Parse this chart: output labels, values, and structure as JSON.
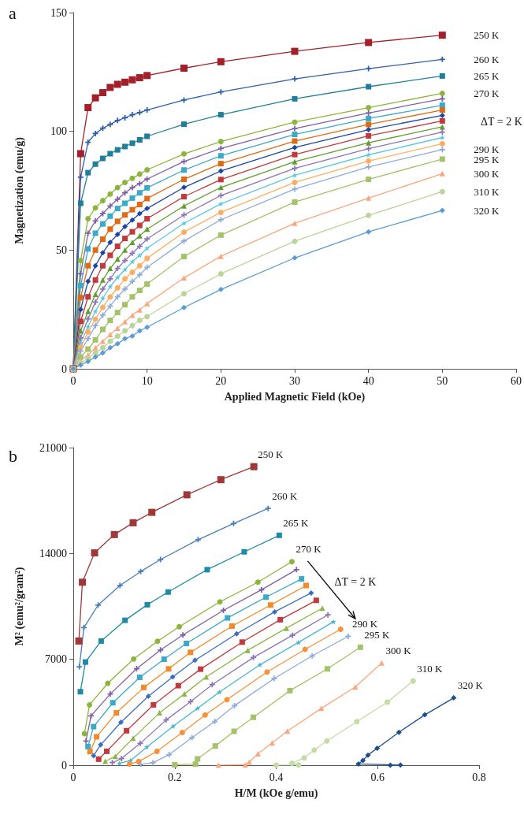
{
  "chart_data": [
    {
      "type": "line",
      "title": "a",
      "xlabel": "Applied Magnetic Field (kOe)",
      "ylabel": "Magnetization (emu/g)",
      "xlim": [
        0,
        60
      ],
      "xticks": [
        0,
        10,
        20,
        30,
        40,
        50,
        60
      ],
      "ylim": [
        0,
        150
      ],
      "yticks": [
        0,
        50,
        100,
        150
      ],
      "grid": false,
      "legend": false,
      "annotations": [
        "ΔT = 2 K"
      ],
      "x": [
        0,
        1,
        2,
        3,
        4,
        5,
        6,
        7,
        8,
        9,
        10,
        15,
        20,
        30,
        40,
        50
      ],
      "series": [
        {
          "name": "250 K",
          "color": "#a31f2a",
          "marker": "square",
          "values": [
            0,
            90.6,
            110,
            114.1,
            116.3,
            118.5,
            119.8,
            120.7,
            121.7,
            122.6,
            123.5,
            126.6,
            129.3,
            133.7,
            137.4,
            140.5
          ]
        },
        {
          "name": "260 K",
          "color": "#2f5fa8",
          "marker": "cross",
          "values": [
            0,
            80.7,
            95.4,
            99.1,
            101.3,
            102.9,
            104.6,
            105.7,
            107,
            107.9,
            109,
            113.2,
            116.6,
            122.1,
            126.4,
            130.3
          ]
        },
        {
          "name": "265 K",
          "color": "#1f7f9a",
          "marker": "square",
          "values": [
            0,
            69.7,
            82.6,
            86.2,
            88.6,
            90.6,
            92.2,
            93.6,
            95,
            96.4,
            97.9,
            103,
            107,
            113.7,
            118.8,
            123.3
          ]
        },
        {
          "name": "270 K",
          "color": "#8db53c",
          "marker": "circle",
          "values": [
            0,
            45.6,
            63.2,
            67.8,
            70.8,
            73.6,
            76.3,
            78.5,
            80.2,
            82,
            83.8,
            90.5,
            95.7,
            103.9,
            110,
            116
          ]
        },
        {
          "color": "#7f5fa3",
          "marker": "cross",
          "values": [
            0,
            40,
            57.1,
            62.3,
            65.4,
            68.6,
            71.4,
            74.1,
            76.3,
            78,
            79.9,
            87.3,
            92.8,
            101.2,
            107.7,
            113.7
          ]
        },
        {
          "color": "#3ca9c7",
          "marker": "square",
          "values": [
            0,
            35,
            50.5,
            57.1,
            61,
            64.3,
            67.5,
            69.7,
            71.9,
            74.1,
            76.2,
            83.7,
            89.7,
            98.7,
            105.4,
            111
          ]
        },
        {
          "color": "#dd6a14",
          "marker": "square",
          "values": [
            0,
            30,
            43.4,
            50,
            54.6,
            58.8,
            62.1,
            64.8,
            67,
            69.2,
            71.7,
            79.8,
            86.4,
            95.9,
            102.9,
            109
          ]
        },
        {
          "color": "#1c46a6",
          "marker": "diamond",
          "values": [
            0,
            25,
            36.8,
            43.4,
            48.9,
            53.3,
            56.6,
            59.9,
            62.6,
            65.4,
            67.5,
            76.4,
            83.3,
            93.2,
            100.7,
            106.7
          ]
        },
        {
          "color": "#c0393d",
          "marker": "square",
          "values": [
            0,
            20,
            30.3,
            37.4,
            43.4,
            47.8,
            51.6,
            54.9,
            57.7,
            60.4,
            63.2,
            72.5,
            79.7,
            90.2,
            98.1,
            104.4
          ]
        },
        {
          "color": "#5f9e2f",
          "marker": "triangle",
          "values": [
            0,
            16,
            24.2,
            31.4,
            37.4,
            42.3,
            46.2,
            50,
            53.3,
            56,
            58.8,
            68.6,
            76.4,
            87.2,
            95.2,
            101.9
          ]
        },
        {
          "color": "#8d73b3",
          "marker": "cross",
          "values": [
            0,
            13,
            21,
            28.1,
            33.6,
            37.9,
            42.3,
            45.6,
            48.7,
            51.6,
            54.7,
            64.8,
            73,
            84.4,
            92.7,
            99.7
          ]
        },
        {
          "color": "#5cc8e0",
          "marker": "star",
          "values": [
            0,
            11,
            17.7,
            24.2,
            29.7,
            34.6,
            38.5,
            41.8,
            45.1,
            47.8,
            50.8,
            61.3,
            69.5,
            81.5,
            90.1,
            97.4
          ]
        },
        {
          "color": "#ffad60",
          "marker": "circle",
          "values": [
            0,
            9,
            15.5,
            20.9,
            25.9,
            30.3,
            34.1,
            37.9,
            40.7,
            43.4,
            46.5,
            57.6,
            65.9,
            78.5,
            87.5,
            94.8
          ]
        },
        {
          "name": "290 K",
          "color": "#8eaadb",
          "marker": "cross",
          "values": [
            0,
            7.5,
            12.7,
            18.2,
            22.6,
            26.4,
            30.3,
            33.6,
            36.8,
            39.6,
            42.7,
            53.8,
            62.8,
            75.7,
            85,
            92.3
          ]
        },
        {
          "name": "295 K",
          "color": "#a4c26a",
          "marker": "square",
          "values": [
            0,
            5,
            8.3,
            12.2,
            16.6,
            20.4,
            23.7,
            27,
            30.3,
            33,
            35.7,
            47.3,
            56.3,
            70.2,
            79.8,
            88.3
          ]
        },
        {
          "name": "300 K",
          "color": "#f9a77e",
          "marker": "triangle",
          "values": [
            0,
            3.5,
            5.9,
            8.9,
            11.6,
            14.4,
            17.1,
            19.8,
            22.6,
            24.8,
            27.5,
            38.3,
            47.4,
            61.3,
            71.9,
            82.2
          ]
        },
        {
          "name": "310 K",
          "color": "#bcd39a",
          "marker": "circle",
          "values": [
            0,
            2.5,
            4.5,
            6.7,
            8.9,
            11.6,
            13.8,
            16,
            18.2,
            20.4,
            22,
            31.6,
            40,
            53.7,
            64.6,
            74.6
          ]
        },
        {
          "name": "320 K",
          "color": "#5b9bd5",
          "marker": "diamond",
          "values": [
            0,
            1.6,
            3.1,
            5,
            6.7,
            8.9,
            10.5,
            12.7,
            13.8,
            16,
            17.5,
            25.8,
            33.4,
            46.7,
            57.7,
            66.7
          ]
        }
      ]
    },
    {
      "type": "line",
      "title": "b",
      "xlabel": "H/M (kOe g/emu)",
      "ylabel": "M² (emu²/gram²)",
      "xlim": [
        0,
        0.8
      ],
      "xticks": [
        0,
        0.2,
        0.4,
        0.6,
        0.8
      ],
      "ylim": [
        0,
        21000
      ],
      "yticks": [
        0,
        7000,
        14000,
        21000
      ],
      "grid": false,
      "legend": false,
      "annotations": [
        "ΔT = 2 K"
      ],
      "series": [
        {
          "name": "250 K",
          "color": "#a0383a",
          "marker": "square",
          "x": [
            0.011,
            0.018,
            0.042,
            0.081,
            0.118,
            0.155,
            0.224,
            0.291,
            0.356
          ],
          "values": [
            8210,
            12100,
            14040,
            15250,
            16030,
            16720,
            17880,
            18880,
            19740
          ]
        },
        {
          "name": "260 K",
          "color": "#4a7ebb",
          "marker": "cross",
          "x": [
            0.012,
            0.021,
            0.049,
            0.092,
            0.133,
            0.172,
            0.246,
            0.316,
            0.384
          ],
          "values": [
            6510,
            9100,
            10590,
            11880,
            12810,
            13600,
            14910,
            15980,
            16980
          ]
        },
        {
          "name": "265 K",
          "color": "#1f8aa6",
          "marker": "square",
          "x": [
            0.014,
            0.024,
            0.055,
            0.102,
            0.146,
            0.187,
            0.264,
            0.337,
            0.406
          ],
          "values": [
            4860,
            6820,
            8210,
            9580,
            10610,
            11450,
            12930,
            14110,
            15200
          ]
        },
        {
          "name": "270 K",
          "color": "#8db53c",
          "marker": "circle",
          "x": [
            0.022,
            0.032,
            0.068,
            0.119,
            0.166,
            0.209,
            0.289,
            0.364,
            0.431
          ],
          "values": [
            2080,
            3990,
            5420,
            7020,
            8190,
            9160,
            10800,
            12100,
            13460
          ]
        },
        {
          "color": "#7f5fa3",
          "marker": "cross",
          "x": [
            0.025,
            0.035,
            0.073,
            0.125,
            0.172,
            0.216,
            0.296,
            0.371,
            0.44
          ],
          "values": [
            1600,
            3260,
            4710,
            6380,
            7620,
            8610,
            10240,
            11600,
            12930
          ]
        },
        {
          "color": "#3ca9c7",
          "marker": "square",
          "x": [
            0.029,
            0.04,
            0.078,
            0.131,
            0.179,
            0.223,
            0.304,
            0.38,
            0.45
          ],
          "values": [
            1230,
            2550,
            4130,
            5810,
            7010,
            8050,
            9740,
            11110,
            12320
          ]
        },
        {
          "color": "#f08a2c",
          "marker": "square",
          "x": [
            0.033,
            0.046,
            0.085,
            0.139,
            0.188,
            0.231,
            0.313,
            0.389,
            0.459
          ],
          "values": [
            900,
            1880,
            3460,
            5140,
            6370,
            7460,
            9200,
            10590,
            11880
          ]
        },
        {
          "color": "#3b6fc4",
          "marker": "diamond",
          "x": [
            0.04,
            0.054,
            0.094,
            0.148,
            0.196,
            0.24,
            0.322,
            0.397,
            0.469
          ],
          "values": [
            630,
            1350,
            2840,
            4560,
            5840,
            6940,
            8690,
            10140,
            11390
          ]
        },
        {
          "color": "#c0393d",
          "marker": "square",
          "x": [
            0.05,
            0.066,
            0.105,
            0.158,
            0.207,
            0.251,
            0.333,
            0.408,
            0.479
          ],
          "values": [
            400,
            920,
            2280,
            3990,
            5260,
            6350,
            8140,
            9620,
            10900
          ]
        },
        {
          "color": "#8fb548",
          "marker": "triangle",
          "x": [
            0.063,
            0.083,
            0.118,
            0.17,
            0.219,
            0.262,
            0.344,
            0.42,
            0.491
          ],
          "values": [
            260,
            590,
            1790,
            3460,
            4710,
            5840,
            7600,
            9060,
            10380
          ]
        },
        {
          "color": "#8d73b3",
          "marker": "cross",
          "x": [
            0.077,
            0.095,
            0.132,
            0.183,
            0.231,
            0.274,
            0.355,
            0.432,
            0.502
          ],
          "values": [
            170,
            440,
            1440,
            2990,
            4200,
            5330,
            7120,
            8590,
            9940
          ]
        },
        {
          "color": "#4bb5d0",
          "marker": "star",
          "x": [
            0.091,
            0.113,
            0.145,
            0.197,
            0.245,
            0.288,
            0.368,
            0.444,
            0.513
          ],
          "values": [
            120,
            310,
            1200,
            2580,
            3760,
            4830,
            6640,
            8120,
            9490
          ]
        },
        {
          "color": "#f7923a",
          "marker": "circle",
          "x": [
            0.111,
            0.129,
            0.165,
            0.215,
            0.26,
            0.303,
            0.382,
            0.457,
            0.527
          ],
          "values": [
            80,
            240,
            920,
            2160,
            3320,
            4340,
            6160,
            7660,
            8990
          ]
        },
        {
          "name": "290 K",
          "color": "#8eaadb",
          "marker": "cross",
          "x": [
            0.133,
            0.157,
            0.189,
            0.234,
            0.279,
            0.318,
            0.396,
            0.471,
            0.542
          ],
          "values": [
            60,
            160,
            700,
            1820,
            2890,
            3940,
            5730,
            7230,
            8520
          ]
        },
        {
          "name": "295 K",
          "color": "#a4c26a",
          "marker": "square",
          "x": [
            0.2,
            0.241,
            0.245,
            0.28,
            0.317,
            0.355,
            0.427,
            0.501,
            0.566
          ],
          "values": [
            30,
            70,
            420,
            1270,
            2240,
            3170,
            4930,
            6370,
            7800
          ]
        },
        {
          "name": "300 K",
          "color": "#f9a77e",
          "marker": "triangle",
          "x": [
            0.286,
            0.339,
            0.347,
            0.364,
            0.392,
            0.422,
            0.489,
            0.556,
            0.608
          ],
          "values": [
            10,
            30,
            210,
            760,
            1470,
            2250,
            3760,
            5170,
            6760
          ]
        },
        {
          "name": "310 K",
          "color": "#c5dba6",
          "marker": "circle",
          "x": [
            0.4,
            0.444,
            0.431,
            0.455,
            0.475,
            0.5,
            0.559,
            0.619,
            0.67
          ],
          "values": [
            10,
            20,
            130,
            480,
            1000,
            1600,
            2880,
            4170,
            5570
          ]
        },
        {
          "name": "320 K",
          "color": "#1f4e8c",
          "marker": "diamond",
          "x": [
            0.625,
            0.645,
            0.562,
            0.571,
            0.581,
            0.599,
            0.642,
            0.693,
            0.75
          ],
          "values": [
            0,
            10,
            80,
            310,
            670,
            1120,
            2180,
            3330,
            4450
          ]
        }
      ]
    }
  ]
}
